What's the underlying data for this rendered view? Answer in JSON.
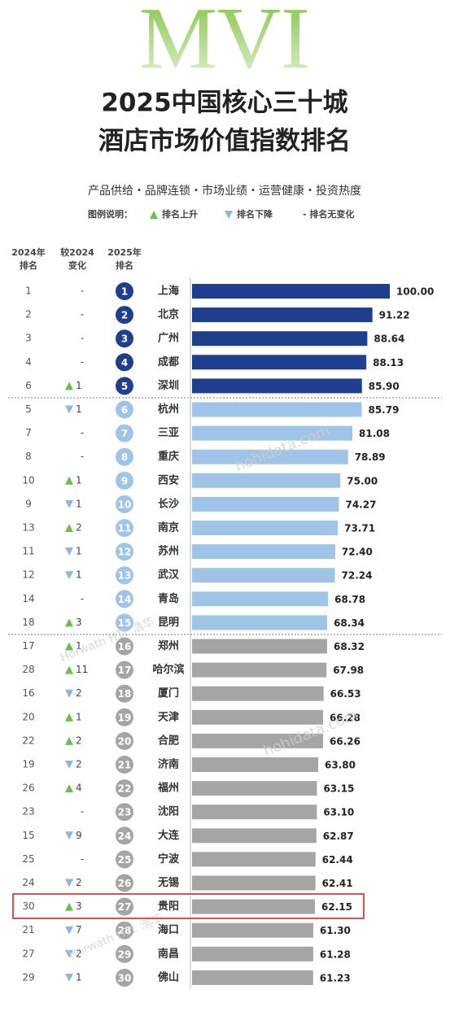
{
  "chart_data": {
    "type": "bar",
    "orientation": "horizontal",
    "watermark_title": "MVI",
    "title_lines": [
      "2025中国核心三十城",
      "酒店市场价值指数排名"
    ],
    "subtitle": "产品供给・品牌连锁・市场业绩・运营健康・投资热度",
    "legend": {
      "label": "图例说明：",
      "up": "排名上升",
      "down": "排名下降",
      "none": "- 排名无变化"
    },
    "column_headers": [
      [
        "2024年",
        "排名"
      ],
      [
        "较2024",
        "变化"
      ],
      [
        "2025年",
        "排名"
      ]
    ],
    "watermarks": [
      "hohidata.com",
      "hohidata.com",
      "Horwath HTL 浩华",
      "Horwath HTL 浩华"
    ],
    "categories": [
      "上海",
      "北京",
      "广州",
      "成都",
      "深圳",
      "杭州",
      "三亚",
      "重庆",
      "西安",
      "长沙",
      "南京",
      "苏州",
      "武汉",
      "青岛",
      "昆明",
      "郑州",
      "哈尔滨",
      "厦门",
      "天津",
      "合肥",
      "济南",
      "福州",
      "沈阳",
      "大连",
      "宁波",
      "无锡",
      "贵阳",
      "海口",
      "南昌",
      "佛山"
    ],
    "rank_2025": [
      1,
      2,
      3,
      4,
      5,
      6,
      7,
      8,
      9,
      10,
      11,
      12,
      13,
      14,
      15,
      16,
      17,
      18,
      19,
      20,
      21,
      22,
      23,
      24,
      25,
      26,
      27,
      28,
      29,
      30
    ],
    "rank_2024": [
      1,
      2,
      3,
      4,
      6,
      5,
      7,
      8,
      10,
      9,
      13,
      11,
      12,
      14,
      18,
      17,
      28,
      16,
      20,
      22,
      19,
      26,
      23,
      15,
      25,
      24,
      30,
      21,
      27,
      29
    ],
    "change": [
      "-",
      "-",
      "-",
      "-",
      1,
      1,
      "-",
      "-",
      1,
      1,
      2,
      1,
      1,
      "-",
      3,
      1,
      11,
      2,
      1,
      2,
      2,
      4,
      "-",
      9,
      "-",
      2,
      3,
      7,
      2,
      1
    ],
    "change_direction": [
      "none",
      "none",
      "none",
      "none",
      "up",
      "down",
      "none",
      "none",
      "up",
      "down",
      "up",
      "down",
      "down",
      "none",
      "up",
      "up",
      "up",
      "down",
      "up",
      "up",
      "down",
      "up",
      "none",
      "down",
      "none",
      "down",
      "up",
      "down",
      "down",
      "down"
    ],
    "values": [
      100.0,
      91.22,
      88.64,
      88.13,
      85.9,
      85.79,
      81.08,
      78.89,
      75.0,
      74.27,
      73.71,
      72.4,
      72.24,
      68.78,
      68.34,
      68.32,
      67.98,
      66.53,
      66.28,
      66.26,
      63.8,
      63.15,
      63.1,
      62.87,
      62.44,
      62.41,
      62.15,
      61.3,
      61.28,
      61.23
    ],
    "value_labels": [
      "100.00",
      "91.22",
      "88.64",
      "88.13",
      "85.90",
      "85.79",
      "81.08",
      "78.89",
      "75.00",
      "74.27",
      "73.71",
      "72.40",
      "72.24",
      "68.78",
      "68.34",
      "68.32",
      "67.98",
      "66.53",
      "66.28",
      "66.26",
      "63.80",
      "63.15",
      "63.10",
      "62.87",
      "62.44",
      "62.41",
      "62.15",
      "61.30",
      "61.28",
      "61.23"
    ],
    "colors": [
      "#1f3f8e",
      "#1f3f8e",
      "#1f3f8e",
      "#1f3f8e",
      "#1f3f8e",
      "#9fc4e8",
      "#9fc4e8",
      "#9fc4e8",
      "#9fc4e8",
      "#9fc4e8",
      "#9fc4e8",
      "#9fc4e8",
      "#9fc4e8",
      "#9fc4e8",
      "#9fc4e8",
      "#a5a5a5",
      "#a5a5a5",
      "#a5a5a5",
      "#a5a5a5",
      "#a5a5a5",
      "#a5a5a5",
      "#a5a5a5",
      "#a5a5a5",
      "#a5a5a5",
      "#a5a5a5",
      "#a5a5a5",
      "#a5a5a5",
      "#a5a5a5",
      "#a5a5a5",
      "#a5a5a5"
    ],
    "up_color": "#6cbf4a",
    "down_color": "#8fb7de",
    "xlim": [
      0,
      100
    ]
  }
}
